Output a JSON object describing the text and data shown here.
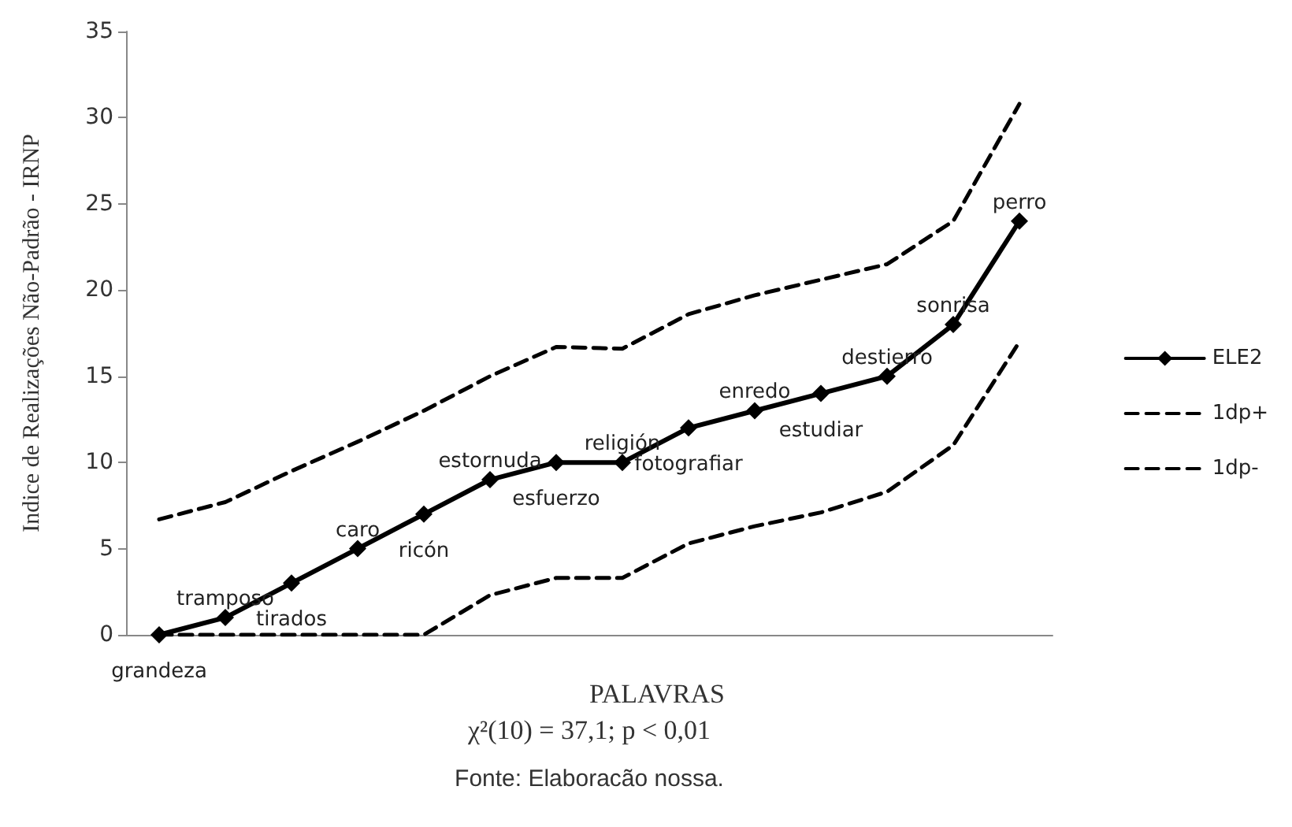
{
  "chart_data": {
    "type": "line",
    "ylabel": "Indice de Realizações Não-Padrão - IRNP",
    "xlabel": "PALAVRAS",
    "annotations": [
      "χ²(10) = 37,1; p < 0,01",
      "Fonte: Elaboracão nossa."
    ],
    "categories": [
      "grandeza",
      "tramposo",
      "tirados",
      "caro",
      "ricón",
      "estornuda",
      "esfuerzo",
      "religión",
      "fotografiar",
      "enredo",
      "estudiar",
      "destierro",
      "sonrisa",
      "perro"
    ],
    "series": [
      {
        "name": "ELE2",
        "color": "#000000",
        "marker": "diamond",
        "line_style": "solid",
        "values": [
          0,
          1,
          3,
          5,
          7,
          9,
          10,
          10,
          12,
          13,
          14,
          15,
          18,
          24
        ]
      },
      {
        "name": "1dp+",
        "color": "#000000",
        "marker": "none",
        "line_style": "dashed",
        "values": [
          6.7,
          7.7,
          9.5,
          11.2,
          13,
          15,
          16.7,
          16.6,
          18.6,
          19.7,
          20.6,
          21.5,
          24,
          30.8
        ]
      },
      {
        "name": "1dp-",
        "color": "#000000",
        "marker": "none",
        "line_style": "dashed",
        "values": [
          0,
          0,
          0,
          0,
          0,
          2.3,
          3.3,
          3.3,
          5.3,
          6.3,
          7.1,
          8.3,
          11,
          17
        ]
      }
    ],
    "ylim": [
      0,
      35
    ],
    "yticks": [
      0,
      5,
      10,
      15,
      20,
      25,
      30,
      35
    ],
    "grid": false,
    "legend": "right",
    "tick_labels": "y"
  }
}
